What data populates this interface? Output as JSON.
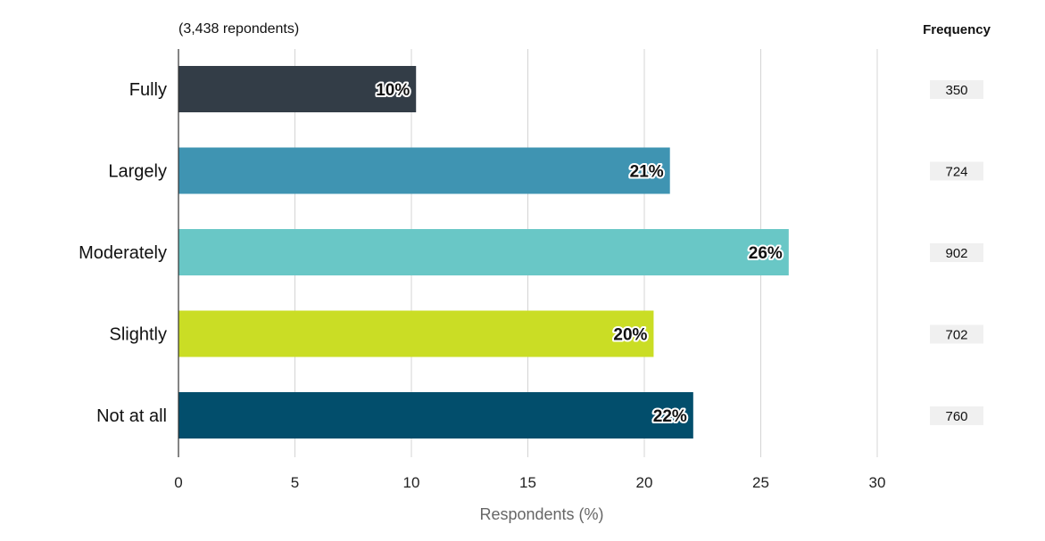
{
  "chart_data": {
    "type": "bar",
    "orientation": "horizontal",
    "note": "(3,438 repondents)",
    "categories": [
      "Fully",
      "Largely",
      "Moderately",
      "Slightly",
      "Not at all"
    ],
    "values": [
      10.2,
      21.1,
      26.2,
      20.4,
      22.1
    ],
    "data_labels": [
      "10%",
      "21%",
      "26%",
      "20%",
      "22%"
    ],
    "colors": [
      "#333d47",
      "#3f94b2",
      "#69c7c6",
      "#cadd25",
      "#024e6c"
    ],
    "xlabel": "Respondents (%)",
    "xlim": [
      0,
      30
    ],
    "xticks": [
      "0",
      "5",
      "10",
      "15",
      "20",
      "25",
      "30"
    ],
    "grid": "vertical",
    "frequency": {
      "header": "Frequency",
      "values": [
        "350",
        "724",
        "902",
        "702",
        "760"
      ]
    }
  }
}
